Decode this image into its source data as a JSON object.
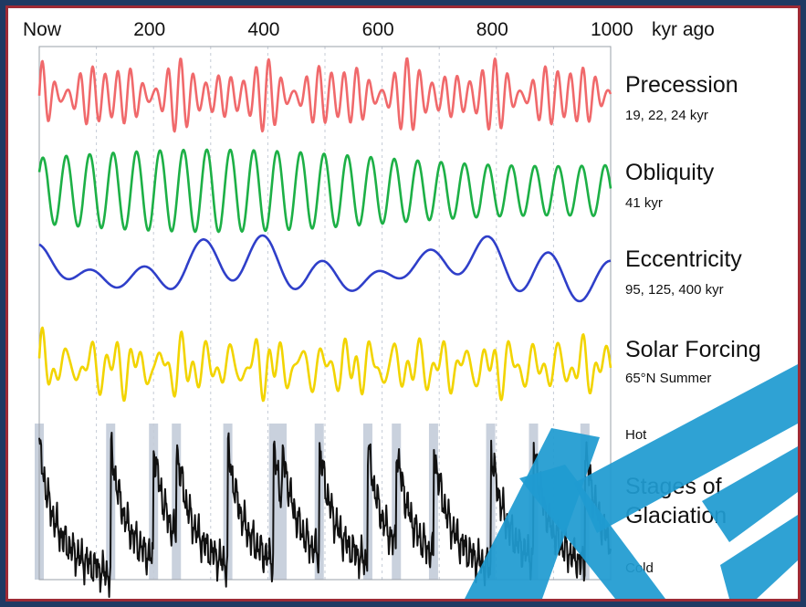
{
  "chart_data": {
    "type": "line",
    "axis": {
      "tick_labels": [
        "Now",
        "200",
        "400",
        "600",
        "800",
        "1000"
      ],
      "tick_values": [
        0,
        200,
        400,
        600,
        800,
        1000
      ],
      "unit": "kyr ago",
      "xlim": [
        0,
        1000
      ]
    },
    "series": [
      {
        "name": "Precession",
        "subtitle": "19, 22, 24 kyr",
        "color": "#f0696b"
      },
      {
        "name": "Obliquity",
        "subtitle": "41 kyr",
        "color": "#1db046"
      },
      {
        "name": "Eccentricity",
        "subtitle": "95, 125, 400 kyr",
        "color": "#2f3fc9"
      },
      {
        "name": "Solar Forcing",
        "subtitle": "65°N Summer",
        "color": "#f2d400"
      },
      {
        "name": "Stages of Glaciation",
        "color": "#111111",
        "high_label": "Hot",
        "low_label": "Cold"
      }
    ],
    "interglacials_kyr_ago": [
      0,
      125,
      200,
      240,
      330,
      410,
      425,
      490,
      575,
      625,
      690,
      790,
      865,
      955
    ]
  },
  "colors": {
    "background": "#1f3a63",
    "frame": "#9e2a35",
    "band": "#c9d1dd",
    "watermark": "#1f9bd1"
  }
}
